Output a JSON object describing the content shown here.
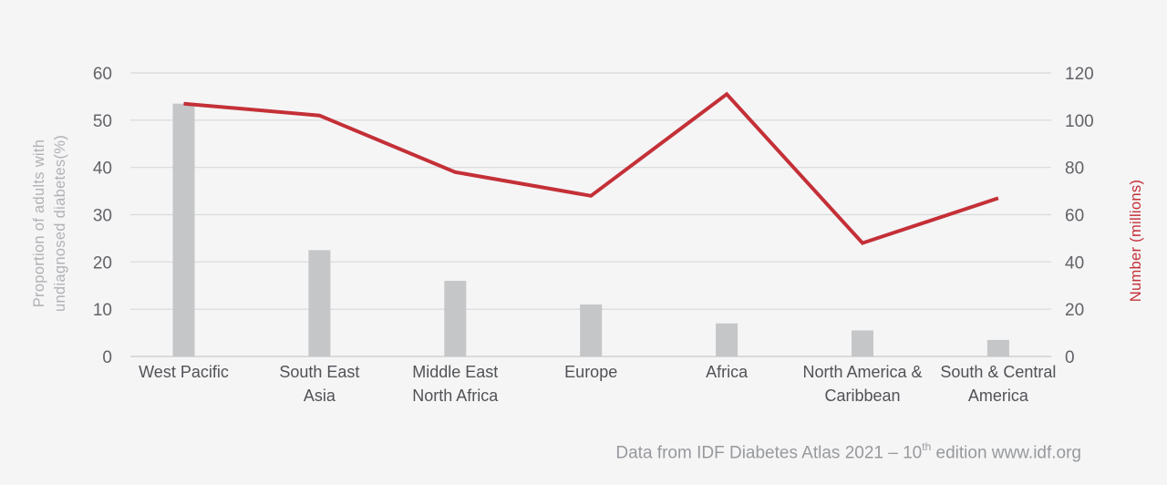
{
  "page": {
    "background_color": "#f5f5f6"
  },
  "colors": {
    "bar": "#c5c6c8",
    "line": "#c43037",
    "gridline": "#d8d9da",
    "zero_line": "#c9cacc",
    "tick_label": "#626367",
    "category_label": "#515256",
    "left_axis_title": "#b0b1b4",
    "right_axis_title": "#c43037",
    "footer_text": "#97999c"
  },
  "chart_data": {
    "type": "bar",
    "variant": "combo bar + line with dual y-axes",
    "title": "",
    "legend": "none",
    "grid": "horizontal gridlines only",
    "categories": [
      "West Pacific",
      "South East\nAsia",
      "Middle East\nNorth Africa",
      "Europe",
      "Africa",
      "North America &\nCaribbean",
      "South & Central\nAmerica"
    ],
    "series": [
      {
        "name": "Proportion of adults with undiagnosed diabetes (%)",
        "type": "bar",
        "axis": "left",
        "color": "#c5c6c8",
        "values": [
          53.5,
          22.5,
          16,
          11,
          7,
          5.5,
          3.5
        ]
      },
      {
        "name": "Number (millions)",
        "type": "line",
        "axis": "right",
        "color": "#c43037",
        "values": [
          107,
          102,
          78,
          68,
          111,
          48,
          67
        ]
      }
    ],
    "axes": {
      "left": {
        "label_line1": "Proportion of adults with",
        "label_line2": "undiagnosed diabetes(%)",
        "ticks": [
          0,
          10,
          20,
          30,
          40,
          50,
          60
        ],
        "lim": [
          0,
          60
        ]
      },
      "right": {
        "label": "Number (millions)",
        "ticks": [
          0,
          20,
          40,
          60,
          80,
          100,
          120
        ],
        "lim": [
          0,
          120
        ]
      }
    },
    "caption": "Data from IDF Diabetes Atlas 2021 – 10th edition www.idf.org"
  },
  "footer": {
    "prefix": "Data from IDF Diabetes Atlas 2021 – 10",
    "superscript": "th",
    "suffix": " edition www.idf.org"
  }
}
